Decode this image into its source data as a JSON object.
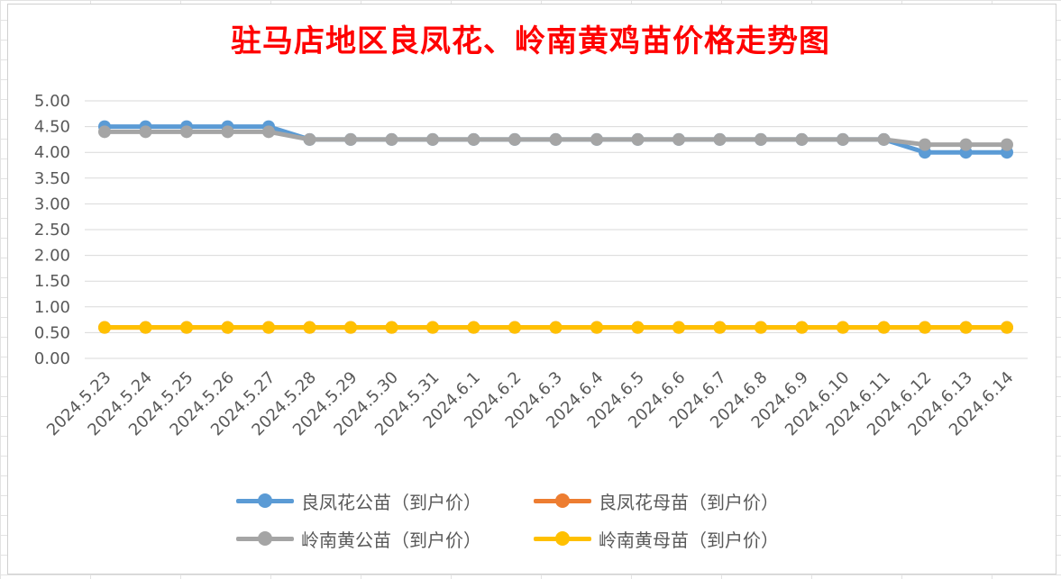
{
  "chart_data": {
    "type": "line",
    "title": "驻马店地区良凤花、岭南黄鸡苗价格走势图",
    "categories": [
      "2024.5.23",
      "2024.5.24",
      "2024.5.25",
      "2024.5.26",
      "2024.5.27",
      "2024.5.28",
      "2024.5.29",
      "2024.5.30",
      "2024.5.31",
      "2024.6.1",
      "2024.6.2",
      "2024.6.3",
      "2024.6.4",
      "2024.6.5",
      "2024.6.6",
      "2024.6.7",
      "2024.6.8",
      "2024.6.9",
      "2024.6.10",
      "2024.6.11",
      "2024.6.12",
      "2024.6.13",
      "2024.6.14"
    ],
    "ylim": [
      0,
      5
    ],
    "yticks": [
      "0.00",
      "0.50",
      "1.00",
      "1.50",
      "2.00",
      "2.50",
      "3.00",
      "3.50",
      "4.00",
      "4.50",
      "5.00"
    ],
    "grid": true,
    "legend_position": "bottom",
    "series": [
      {
        "name": "良凤花公苗（到户价）",
        "color": "#5b9bd5",
        "values": [
          4.5,
          4.5,
          4.5,
          4.5,
          4.5,
          4.25,
          4.25,
          4.25,
          4.25,
          4.25,
          4.25,
          4.25,
          4.25,
          4.25,
          4.25,
          4.25,
          4.25,
          4.25,
          4.25,
          4.25,
          4.0,
          4.0,
          4.0
        ]
      },
      {
        "name": "良凤花母苗（到户价）",
        "color": "#ed7d31",
        "values": [
          0.6,
          0.6,
          0.6,
          0.6,
          0.6,
          0.6,
          0.6,
          0.6,
          0.6,
          0.6,
          0.6,
          0.6,
          0.6,
          0.6,
          0.6,
          0.6,
          0.6,
          0.6,
          0.6,
          0.6,
          0.6,
          0.6,
          0.6
        ]
      },
      {
        "name": "岭南黄公苗（到户价）",
        "color": "#a5a5a5",
        "values": [
          4.4,
          4.4,
          4.4,
          4.4,
          4.4,
          4.25,
          4.25,
          4.25,
          4.25,
          4.25,
          4.25,
          4.25,
          4.25,
          4.25,
          4.25,
          4.25,
          4.25,
          4.25,
          4.25,
          4.25,
          4.15,
          4.15,
          4.15
        ]
      },
      {
        "name": "岭南黄母苗（到户价）",
        "color": "#ffc000",
        "values": [
          0.6,
          0.6,
          0.6,
          0.6,
          0.6,
          0.6,
          0.6,
          0.6,
          0.6,
          0.6,
          0.6,
          0.6,
          0.6,
          0.6,
          0.6,
          0.6,
          0.6,
          0.6,
          0.6,
          0.6,
          0.6,
          0.6,
          0.6
        ]
      }
    ]
  }
}
